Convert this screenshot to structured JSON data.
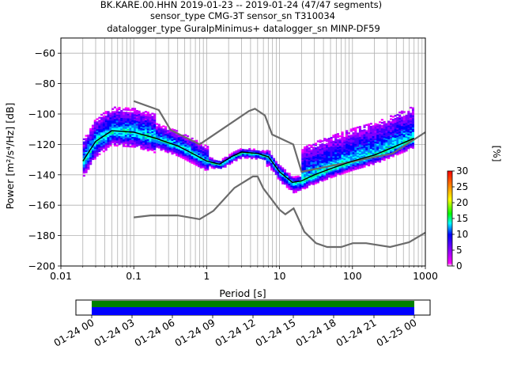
{
  "title": {
    "line1": "BK.KARE.00.HHN   2019-01-23 -- 2019-01-24  (47/47 segments)",
    "line2": "sensor_type CMG-3T sensor_sn T310034",
    "line3": "datalogger_type GuralpMinimus+ datalogger_sn MINP-DF59"
  },
  "chart_data": [
    {
      "type": "heatmap",
      "xscale": "log",
      "xlim": [
        0.01,
        1000
      ],
      "ylim": [
        -200,
        -50
      ],
      "grid": true,
      "xlabel": "Period [s]",
      "ylabel": "Power [m²/s⁴/Hz] [dB]",
      "xticks": [
        {
          "v": 0.01,
          "t": "0.01"
        },
        {
          "v": 0.1,
          "t": "0.1"
        },
        {
          "v": 1,
          "t": "1"
        },
        {
          "v": 10,
          "t": "10"
        },
        {
          "v": 100,
          "t": "100"
        },
        {
          "v": 1000,
          "t": "1000"
        }
      ],
      "yticks": [
        -60,
        -80,
        -100,
        -120,
        -140,
        -160,
        -180,
        -200
      ],
      "colorbar": {
        "label": "[%]",
        "min": 0,
        "max": 30,
        "ticks": [
          0,
          5,
          10,
          15,
          20,
          25,
          30
        ]
      },
      "mean_curve": [
        [
          0.02,
          -131
        ],
        [
          0.03,
          -118
        ],
        [
          0.05,
          -111
        ],
        [
          0.1,
          -112
        ],
        [
          0.2,
          -116
        ],
        [
          0.4,
          -121
        ],
        [
          0.7,
          -127
        ],
        [
          1,
          -131
        ],
        [
          1.5,
          -133
        ],
        [
          2.2,
          -128
        ],
        [
          3,
          -125
        ],
        [
          5,
          -126
        ],
        [
          7,
          -128
        ],
        [
          10,
          -138
        ],
        [
          15,
          -145
        ],
        [
          20,
          -144
        ],
        [
          30,
          -140
        ],
        [
          50,
          -136
        ],
        [
          100,
          -131
        ],
        [
          200,
          -127
        ],
        [
          400,
          -121
        ],
        [
          700,
          -116
        ]
      ],
      "noise_model_high": [
        [
          0.1,
          -91.5
        ],
        [
          0.22,
          -97.4
        ],
        [
          0.32,
          -110.5
        ],
        [
          0.8,
          -120
        ],
        [
          3.8,
          -98
        ],
        [
          4.6,
          -96.5
        ],
        [
          6.3,
          -101
        ],
        [
          7.9,
          -113.5
        ],
        [
          15.4,
          -120
        ],
        [
          20,
          -138
        ],
        [
          354.8,
          -126
        ],
        [
          1000,
          -112
        ]
      ],
      "noise_model_low": [
        [
          0.1,
          -168
        ],
        [
          0.17,
          -166.7
        ],
        [
          0.4,
          -166.7
        ],
        [
          0.8,
          -169.2
        ],
        [
          1.24,
          -163.7
        ],
        [
          2.4,
          -148.6
        ],
        [
          4.3,
          -141.1
        ],
        [
          5,
          -141.1
        ],
        [
          6,
          -149
        ],
        [
          10,
          -163
        ],
        [
          12,
          -166
        ],
        [
          15.6,
          -162.1
        ],
        [
          21.9,
          -177.5
        ],
        [
          31.6,
          -185
        ],
        [
          45,
          -187.5
        ],
        [
          70,
          -187.5
        ],
        [
          101,
          -185
        ],
        [
          154,
          -185
        ],
        [
          328,
          -187.5
        ],
        [
          600,
          -184.4
        ],
        [
          1000,
          -178
        ]
      ]
    },
    {
      "type": "bar",
      "name": "data-coverage",
      "xlabels": [
        "01-24 00",
        "01-24 03",
        "01-24 06",
        "01-24 09",
        "01-24 12",
        "01-24 15",
        "01-24 18",
        "01-24 21",
        "01-25 00"
      ],
      "coverage_fraction": 1.0,
      "colors": {
        "available": "#008000",
        "used": "#0000ff"
      }
    }
  ],
  "colors": {
    "grid": "#b0b0b0",
    "mean": "#000000",
    "noise_model": "#6b6b6b"
  }
}
